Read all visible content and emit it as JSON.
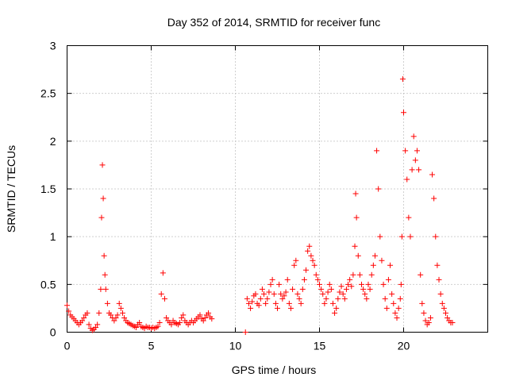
{
  "chart_data": {
    "type": "scatter",
    "title": "Day 352 of 2014, SRMTID for receiver func",
    "xlabel": "GPS time / hours",
    "ylabel": "SRMTID / TECUs",
    "xlim": [
      0,
      25
    ],
    "ylim": [
      0,
      3
    ],
    "x_ticks": [
      0,
      5,
      10,
      15,
      20
    ],
    "x_tick_labels": [
      "0",
      "5",
      "10",
      "15",
      "20"
    ],
    "y_ticks": [
      0,
      0.5,
      1,
      1.5,
      2,
      2.5,
      3
    ],
    "y_tick_labels": [
      "0",
      "0.5",
      "1",
      "1.5",
      "2",
      "2.5",
      "3"
    ],
    "grid": true,
    "marker": "+",
    "series": [
      {
        "name": "SRMTID",
        "color": "#ff0000",
        "x": [
          0.0,
          0.1,
          0.2,
          0.3,
          0.4,
          0.5,
          0.6,
          0.7,
          0.8,
          0.9,
          1.0,
          1.1,
          1.2,
          1.3,
          1.4,
          1.5,
          1.6,
          1.7,
          1.8,
          1.9,
          2.0,
          2.05,
          2.1,
          2.15,
          2.2,
          2.25,
          2.3,
          2.4,
          2.5,
          2.6,
          2.7,
          2.8,
          2.9,
          3.0,
          3.1,
          3.2,
          3.3,
          3.4,
          3.5,
          3.6,
          3.7,
          3.8,
          3.9,
          4.0,
          4.1,
          4.2,
          4.3,
          4.4,
          4.5,
          4.6,
          4.7,
          4.8,
          4.9,
          5.0,
          5.1,
          5.2,
          5.3,
          5.4,
          5.5,
          5.6,
          5.7,
          5.8,
          5.9,
          6.0,
          6.1,
          6.2,
          6.3,
          6.4,
          6.5,
          6.6,
          6.7,
          6.8,
          6.9,
          7.0,
          7.1,
          7.2,
          7.3,
          7.4,
          7.5,
          7.6,
          7.7,
          7.8,
          7.9,
          8.0,
          8.1,
          8.2,
          8.3,
          8.4,
          8.5,
          8.6,
          10.6,
          10.7,
          10.8,
          10.9,
          11.0,
          11.1,
          11.2,
          11.3,
          11.4,
          11.5,
          11.6,
          11.7,
          11.8,
          11.9,
          12.0,
          12.1,
          12.2,
          12.3,
          12.4,
          12.5,
          12.6,
          12.7,
          12.8,
          12.9,
          13.0,
          13.1,
          13.2,
          13.3,
          13.4,
          13.5,
          13.6,
          13.7,
          13.8,
          13.9,
          14.0,
          14.1,
          14.2,
          14.3,
          14.4,
          14.5,
          14.6,
          14.7,
          14.8,
          14.9,
          15.0,
          15.1,
          15.2,
          15.3,
          15.4,
          15.5,
          15.6,
          15.7,
          15.8,
          15.9,
          16.0,
          16.1,
          16.2,
          16.3,
          16.4,
          16.5,
          16.6,
          16.7,
          16.8,
          16.9,
          17.0,
          17.1,
          17.15,
          17.2,
          17.3,
          17.4,
          17.5,
          17.6,
          17.7,
          17.8,
          17.9,
          18.0,
          18.1,
          18.2,
          18.3,
          18.4,
          18.5,
          18.6,
          18.7,
          18.8,
          18.9,
          19.0,
          19.1,
          19.2,
          19.3,
          19.4,
          19.5,
          19.6,
          19.7,
          19.8,
          19.85,
          19.9,
          19.95,
          20.0,
          20.1,
          20.2,
          20.3,
          20.4,
          20.5,
          20.6,
          20.7,
          20.8,
          20.9,
          21.0,
          21.1,
          21.2,
          21.3,
          21.4,
          21.5,
          21.6,
          21.7,
          21.8,
          21.9,
          22.0,
          22.1,
          22.2,
          22.3,
          22.4,
          22.5,
          22.6,
          22.7,
          22.8,
          22.9
        ],
        "y": [
          0.28,
          0.22,
          0.18,
          0.16,
          0.14,
          0.12,
          0.1,
          0.08,
          0.1,
          0.12,
          0.15,
          0.18,
          0.2,
          0.08,
          0.04,
          0.02,
          0.03,
          0.05,
          0.08,
          0.2,
          0.45,
          1.2,
          1.75,
          1.4,
          0.8,
          0.6,
          0.45,
          0.3,
          0.2,
          0.18,
          0.15,
          0.12,
          0.15,
          0.18,
          0.3,
          0.25,
          0.2,
          0.15,
          0.12,
          0.1,
          0.09,
          0.08,
          0.07,
          0.06,
          0.05,
          0.08,
          0.1,
          0.06,
          0.05,
          0.04,
          0.06,
          0.05,
          0.05,
          0.04,
          0.05,
          0.04,
          0.05,
          0.06,
          0.1,
          0.4,
          0.62,
          0.35,
          0.15,
          0.12,
          0.1,
          0.08,
          0.12,
          0.1,
          0.09,
          0.08,
          0.1,
          0.15,
          0.18,
          0.12,
          0.1,
          0.08,
          0.1,
          0.12,
          0.1,
          0.12,
          0.14,
          0.16,
          0.18,
          0.14,
          0.12,
          0.15,
          0.18,
          0.2,
          0.16,
          0.14,
          0.0,
          0.35,
          0.3,
          0.25,
          0.32,
          0.38,
          0.4,
          0.3,
          0.28,
          0.35,
          0.45,
          0.4,
          0.3,
          0.35,
          0.42,
          0.5,
          0.55,
          0.4,
          0.3,
          0.25,
          0.5,
          0.4,
          0.35,
          0.38,
          0.42,
          0.55,
          0.3,
          0.25,
          0.45,
          0.7,
          0.75,
          0.4,
          0.35,
          0.3,
          0.45,
          0.55,
          0.65,
          0.85,
          0.9,
          0.8,
          0.75,
          0.7,
          0.6,
          0.55,
          0.5,
          0.45,
          0.4,
          0.3,
          0.35,
          0.42,
          0.5,
          0.45,
          0.3,
          0.2,
          0.25,
          0.35,
          0.42,
          0.48,
          0.4,
          0.35,
          0.45,
          0.5,
          0.55,
          0.48,
          0.6,
          0.9,
          1.45,
          1.2,
          0.8,
          0.6,
          0.5,
          0.45,
          0.4,
          0.35,
          0.5,
          0.45,
          0.6,
          0.7,
          0.8,
          1.9,
          1.5,
          1.0,
          0.75,
          0.5,
          0.35,
          0.25,
          0.55,
          0.7,
          0.4,
          0.3,
          0.2,
          0.15,
          0.25,
          0.35,
          0.5,
          1.0,
          2.65,
          2.3,
          1.9,
          1.6,
          1.2,
          1.0,
          1.7,
          2.05,
          1.8,
          1.9,
          1.7,
          0.6,
          0.3,
          0.2,
          0.12,
          0.08,
          0.1,
          0.15,
          1.65,
          1.4,
          1.0,
          0.7,
          0.55,
          0.4,
          0.3,
          0.25,
          0.2,
          0.15,
          0.12,
          0.1,
          0.1
        ]
      }
    ]
  }
}
